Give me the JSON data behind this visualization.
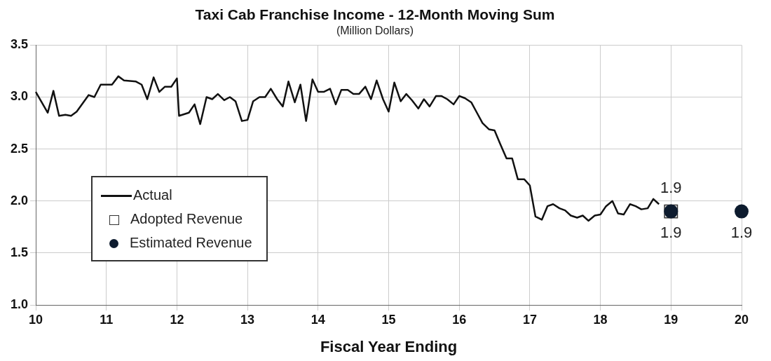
{
  "chart_data": {
    "type": "line",
    "title": "Taxi Cab Franchise Income - 12-Month Moving Sum",
    "subtitle": "(Million Dollars)",
    "xlabel": "Fiscal Year Ending",
    "xlim": [
      10,
      20
    ],
    "xticks": [
      10,
      11,
      12,
      13,
      14,
      15,
      16,
      17,
      18,
      19,
      20
    ],
    "ylim": [
      1,
      3.5
    ],
    "yticks": [
      {
        "value": 1,
        "label": "1.0"
      },
      1.5,
      {
        "value": 2,
        "label": "2.0"
      },
      2.5,
      {
        "value": 3,
        "label": "3.0"
      },
      3.5
    ],
    "grid": true,
    "legend": "bottom left",
    "series": [
      {
        "name": "Actual",
        "type": "line",
        "color": "#111111",
        "marker": "none",
        "line_style": "solid",
        "x": [
          10.0,
          10.17,
          10.25,
          10.33,
          10.42,
          10.5,
          10.58,
          10.75,
          10.83,
          10.92,
          11.08,
          11.17,
          11.25,
          11.42,
          11.5,
          11.58,
          11.67,
          11.75,
          11.83,
          11.92,
          12.0,
          12.03,
          12.17,
          12.25,
          12.33,
          12.42,
          12.5,
          12.58,
          12.67,
          12.75,
          12.83,
          12.92,
          13.0,
          13.08,
          13.17,
          13.25,
          13.33,
          13.42,
          13.5,
          13.58,
          13.67,
          13.75,
          13.83,
          13.92,
          14.0,
          14.08,
          14.17,
          14.25,
          14.33,
          14.42,
          14.5,
          14.58,
          14.67,
          14.75,
          14.83,
          14.92,
          15.0,
          15.08,
          15.17,
          15.25,
          15.33,
          15.42,
          15.5,
          15.58,
          15.67,
          15.75,
          15.83,
          15.92,
          16.0,
          16.08,
          16.17,
          16.25,
          16.33,
          16.42,
          16.5,
          16.58,
          16.67,
          16.75,
          16.83,
          16.92,
          17.0,
          17.08,
          17.17,
          17.25,
          17.33,
          17.42,
          17.5,
          17.58,
          17.67,
          17.75,
          17.83,
          17.92,
          18.0,
          18.08,
          18.17,
          18.25,
          18.33,
          18.42,
          18.5,
          18.58,
          18.67,
          18.75,
          18.83
        ],
        "values": [
          3.05,
          2.85,
          3.06,
          2.82,
          2.83,
          2.82,
          2.86,
          3.02,
          3.0,
          3.12,
          3.12,
          3.2,
          3.16,
          3.15,
          3.12,
          2.98,
          3.19,
          3.05,
          3.1,
          3.1,
          3.18,
          2.82,
          2.85,
          2.93,
          2.74,
          3.0,
          2.98,
          3.03,
          2.97,
          3.0,
          2.96,
          2.77,
          2.78,
          2.96,
          3.0,
          3.0,
          3.08,
          2.98,
          2.91,
          3.15,
          2.95,
          3.12,
          2.77,
          3.17,
          3.05,
          3.05,
          3.08,
          2.93,
          3.07,
          3.07,
          3.03,
          3.03,
          3.1,
          2.98,
          3.16,
          2.98,
          2.86,
          3.14,
          2.96,
          3.03,
          2.97,
          2.89,
          2.98,
          2.91,
          3.01,
          3.01,
          2.98,
          2.93,
          3.01,
          2.99,
          2.95,
          2.85,
          2.75,
          2.69,
          2.68,
          2.55,
          2.41,
          2.41,
          2.21,
          2.21,
          2.15,
          1.85,
          1.82,
          1.95,
          1.97,
          1.93,
          1.91,
          1.86,
          1.84,
          1.86,
          1.81,
          1.86,
          1.87,
          1.95,
          2.0,
          1.88,
          1.87,
          1.97,
          1.95,
          1.92,
          1.93,
          2.02,
          1.97
        ]
      },
      {
        "name": "Adopted Revenue",
        "type": "scatter",
        "color": "#333333",
        "marker": "square",
        "x": [
          19
        ],
        "values": [
          1.9
        ],
        "value_labels": [
          "1.9"
        ]
      },
      {
        "name": "Estimated Revenue",
        "type": "scatter",
        "color": "#0d1b2e",
        "marker": "circle",
        "x": [
          19,
          20
        ],
        "values": [
          1.9,
          1.9
        ],
        "value_labels": [
          "1.9",
          "1.9"
        ]
      }
    ]
  }
}
